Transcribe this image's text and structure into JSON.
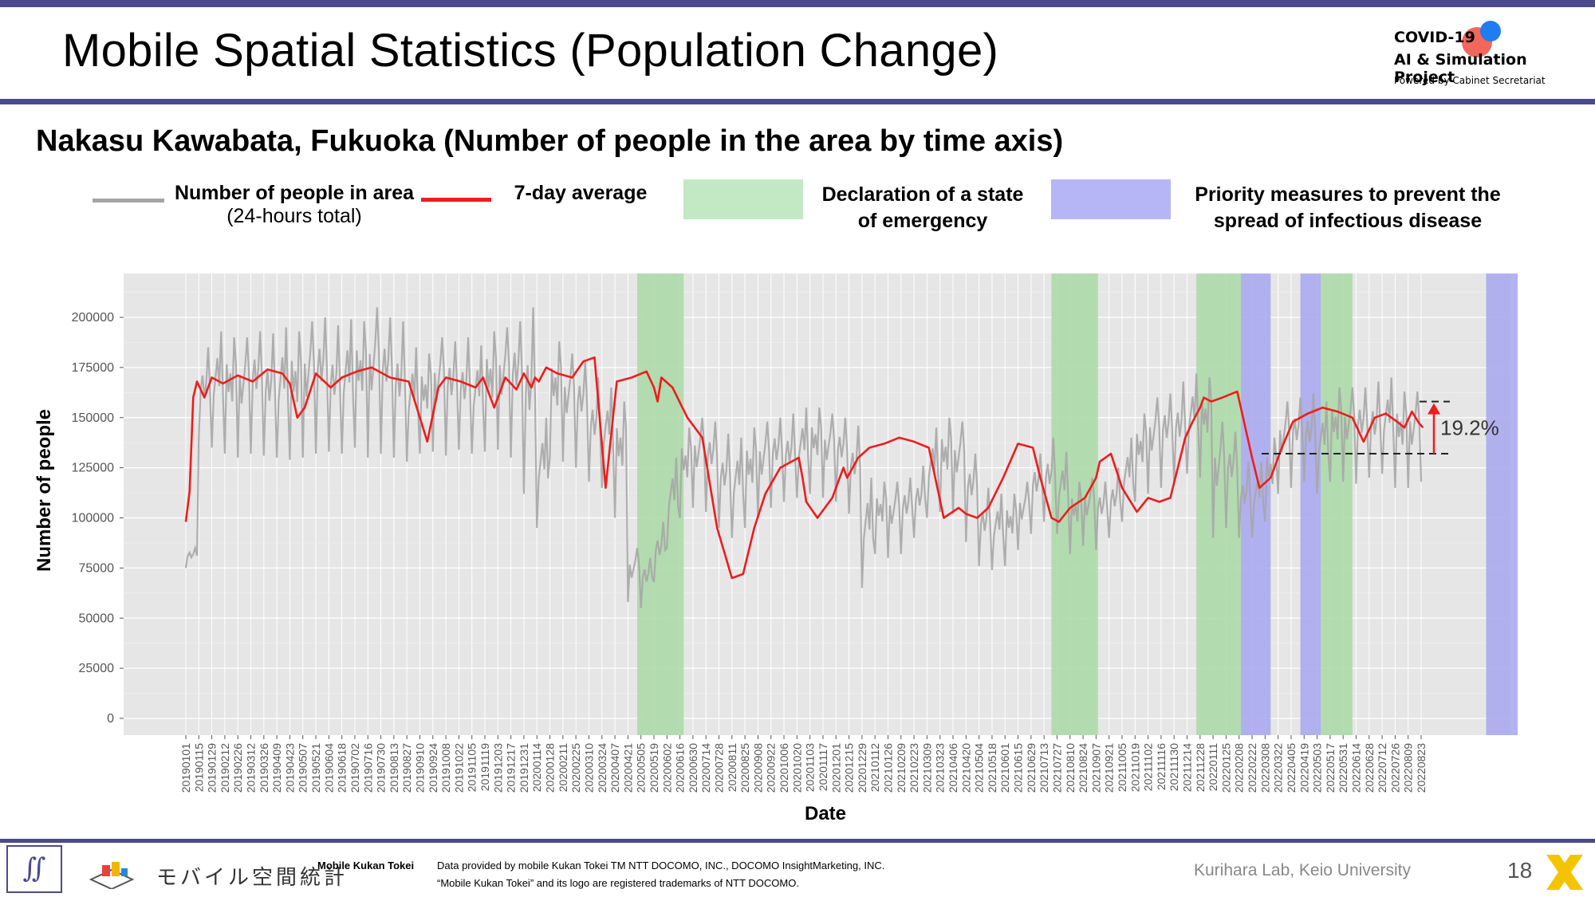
{
  "slide": {
    "title": "Mobile Spatial Statistics (Population Change)",
    "subtitle": "Nakasu Kawabata, Fukuoka (Number of people in the area by time axis)",
    "badge": {
      "line1": "COVID-19",
      "line2": "AI & Simulation Project",
      "line3": "Powered by Cabinet Secretariat"
    },
    "page_number": "18"
  },
  "legend": {
    "people_line1": "Number of people in area",
    "people_line2": "(24-hours total)",
    "avg": "7-day average",
    "emergency_line1": "Declaration of a state",
    "emergency_line2": "of emergency",
    "priority_line1": "Priority measures to prevent the",
    "priority_line2": "spread of infectious disease"
  },
  "footer": {
    "mk_logo_text": "モバイル空間統計",
    "mk_label": "Mobile Kukan Tokei",
    "credit1": "Data provided by mobile Kukan Tokei TM NTT DOCOMO, INC., DOCOMO InsightMarketing, INC.",
    "credit2": "“Mobile Kukan Tokei” and its logo are registered trademarks of NTT DOCOMO.",
    "lab": "Kurihara Lab, Keio University"
  },
  "colors": {
    "raw": "#a6a6a6",
    "avg": "#ee1c1c",
    "emergency": "#a8d8a4",
    "priority": "#a6a6ee",
    "panel": "#e6e6e6",
    "band": "#4b4a8c"
  },
  "chart_data": {
    "type": "line",
    "xlabel": "Date",
    "ylabel": "Number of people",
    "ylim": [
      0,
      220000
    ],
    "yticks": [
      0,
      25000,
      50000,
      75000,
      100000,
      125000,
      150000,
      175000,
      200000
    ],
    "ytick_labels": [
      "0",
      "25000",
      "50000",
      "75000",
      "100000",
      "125000",
      "150000",
      "175000",
      "200000"
    ],
    "xtick_labels": [
      "20190101",
      "20190115",
      "20190129",
      "20190212",
      "20190226",
      "20190312",
      "20190326",
      "20190409",
      "20190423",
      "20190507",
      "20190521",
      "20190604",
      "20190618",
      "20190702",
      "20190716",
      "20190730",
      "20190813",
      "20190827",
      "20190910",
      "20190924",
      "20191008",
      "20191022",
      "20191105",
      "20191119",
      "20191203",
      "20191217",
      "20191231",
      "20200114",
      "20200128",
      "20200211",
      "20200225",
      "20200310",
      "20200324",
      "20200407",
      "20200421",
      "20200505",
      "20200519",
      "20200602",
      "20200616",
      "20200630",
      "20200714",
      "20200728",
      "20200811",
      "20200825",
      "20200908",
      "20200922",
      "20201006",
      "20201020",
      "20201103",
      "20201117",
      "20201201",
      "20201215",
      "20201229",
      "20210112",
      "20210126",
      "20210209",
      "20210223",
      "20210309",
      "20210323",
      "20210406",
      "20210420",
      "20210504",
      "20210518",
      "20210601",
      "20210615",
      "20210629",
      "20210713",
      "20210727",
      "20210810",
      "20210824",
      "20210907",
      "20210921",
      "20211005",
      "20211019",
      "20211102",
      "20211116",
      "20211130",
      "20211214",
      "20211228",
      "20220111",
      "20220125",
      "20220208",
      "20220222",
      "20220308",
      "20220322",
      "20220405",
      "20220419",
      "20220503",
      "20220517",
      "20220531",
      "20220614",
      "20220628",
      "20220712",
      "20220726",
      "20220809",
      "20220823"
    ],
    "series": [
      {
        "name": "Number of people in area",
        "role": "raw_daily",
        "weekly_x": [
          0,
          7,
          14,
          21,
          28,
          35,
          42,
          49,
          56,
          63,
          70,
          77,
          84,
          91,
          98,
          105,
          112,
          119,
          126,
          133,
          140,
          147,
          154,
          161,
          168,
          175,
          182,
          189,
          196,
          203,
          210,
          217,
          224,
          231,
          238,
          245,
          252,
          259,
          266,
          273,
          280,
          287,
          294,
          301,
          308,
          315,
          322,
          329,
          336,
          343,
          350,
          357,
          364,
          371,
          378,
          385,
          392,
          399,
          406,
          413,
          420,
          427,
          434,
          441,
          448,
          455,
          462,
          469,
          476,
          483,
          490,
          497,
          504,
          511,
          518,
          525,
          532,
          539,
          546,
          553,
          560,
          567,
          574,
          581,
          588,
          595,
          602,
          609,
          616,
          623,
          630,
          637,
          644,
          651,
          658,
          665
        ],
        "weekly_high": [
          85000,
          185000,
          193000,
          190000,
          190000,
          193000,
          192000,
          195000,
          193000,
          198000,
          200000,
          196000,
          199000,
          198000,
          205000,
          200000,
          198000,
          185000,
          182000,
          190000,
          188000,
          190000,
          186000,
          193000,
          195000,
          198000,
          205000,
          150000,
          188000,
          182000,
          178000,
          170000,
          165000,
          158000,
          85000,
          80000,
          98000,
          130000,
          145000,
          150000,
          148000,
          142000,
          140000,
          145000,
          148000,
          150000,
          152000,
          155000,
          155000,
          152000,
          150000,
          146000,
          120000,
          118000,
          118000,
          120000,
          126000,
          145000,
          150000,
          148000,
          132000,
          115000,
          112000,
          112000,
          118000,
          132000,
          140000,
          133000,
          118000,
          120000,
          118000,
          125000,
          140000,
          152000,
          160000,
          162000,
          168000,
          172000,
          170000,
          148000,
          143000,
          128000,
          128000,
          140000,
          158000,
          160000,
          162000,
          158000,
          165000,
          165000,
          165000,
          168000,
          170000,
          163000,
          163000,
          164000
        ],
        "weekly_low": [
          75000,
          140000,
          135000,
          132000,
          130000,
          132000,
          131000,
          130000,
          129000,
          130000,
          132000,
          133000,
          132000,
          135000,
          130000,
          132000,
          130000,
          128000,
          132000,
          133000,
          131000,
          134000,
          132000,
          133000,
          134000,
          130000,
          112000,
          95000,
          130000,
          128000,
          125000,
          118000,
          115000,
          100000,
          58000,
          55000,
          68000,
          85000,
          100000,
          105000,
          103000,
          95000,
          90000,
          95000,
          100000,
          105000,
          108000,
          110000,
          112000,
          110000,
          108000,
          102000,
          65000,
          82000,
          80000,
          82000,
          90000,
          100000,
          103000,
          102000,
          88000,
          76000,
          74000,
          76000,
          84000,
          92000,
          98000,
          92000,
          82000,
          86000,
          84000,
          90000,
          98000,
          108000,
          112000,
          115000,
          118000,
          122000,
          120000,
          90000,
          95000,
          90000,
          90000,
          98000,
          112000,
          115000,
          118000,
          112000,
          118000,
          118000,
          117000,
          120000,
          122000,
          115000,
          115000,
          118000
        ]
      },
      {
        "name": "7-day average",
        "role": "rolling_average",
        "x": [
          0,
          2,
          4,
          6,
          10,
          14,
          20,
          28,
          36,
          44,
          52,
          56,
          60,
          64,
          70,
          78,
          84,
          92,
          100,
          110,
          120,
          130,
          136,
          140,
          148,
          156,
          160,
          166,
          172,
          178,
          182,
          186,
          188,
          190,
          194,
          200,
          208,
          214,
          220,
          226,
          232,
          240,
          248,
          252,
          254,
          256,
          262,
          270,
          278,
          286,
          294,
          300,
          306,
          312,
          320,
          330,
          332,
          334,
          340,
          348,
          354,
          356,
          362,
          368,
          376,
          384,
          392,
          400,
          408,
          416,
          420,
          426,
          432,
          440,
          448,
          456,
          460,
          466,
          470,
          476,
          484,
          490,
          492,
          498,
          504,
          512,
          518,
          524,
          530,
          534,
          538,
          542,
          546,
          548,
          552,
          558,
          566,
          574,
          578,
          584,
          590,
          596,
          604,
          612,
          620,
          628,
          634,
          640,
          646,
          652,
          656,
          660,
          664,
          666
        ],
        "y": [
          98000,
          113000,
          160000,
          168000,
          160000,
          170000,
          167000,
          171000,
          168000,
          174000,
          172000,
          167000,
          150000,
          155000,
          172000,
          165000,
          170000,
          173000,
          175000,
          170000,
          168000,
          138000,
          165000,
          170000,
          168000,
          165000,
          170000,
          155000,
          170000,
          164000,
          172000,
          165000,
          170000,
          168000,
          175000,
          172000,
          170000,
          178000,
          180000,
          115000,
          168000,
          170000,
          173000,
          165000,
          158000,
          170000,
          165000,
          150000,
          140000,
          95000,
          70000,
          72000,
          95000,
          112000,
          125000,
          130000,
          120000,
          108000,
          100000,
          110000,
          125000,
          120000,
          130000,
          135000,
          137000,
          140000,
          138000,
          135000,
          100000,
          105000,
          102000,
          100000,
          105000,
          120000,
          137000,
          135000,
          120000,
          100000,
          98000,
          105000,
          110000,
          120000,
          128000,
          132000,
          115000,
          103000,
          110000,
          108000,
          110000,
          125000,
          140000,
          148000,
          155000,
          160000,
          158000,
          160000,
          163000,
          130000,
          115000,
          120000,
          135000,
          148000,
          152000,
          155000,
          153000,
          150000,
          138000,
          150000,
          152000,
          148000,
          145000,
          153000,
          147000,
          145000
        ]
      }
    ],
    "shaded_periods": [
      {
        "label": "Declaration of a state of emergency",
        "start": 243,
        "end": 268
      },
      {
        "label": "Declaration of a state of emergency",
        "start": 466,
        "end": 491
      },
      {
        "label": "Declaration of a state of emergency",
        "start": 544,
        "end": 568
      },
      {
        "label": "Priority measures to prevent the spread of infectious disease",
        "start": 568,
        "end": 584
      },
      {
        "label": "Priority measures to prevent the spread of infectious disease",
        "start": 600,
        "end": 611
      },
      {
        "label": "Declaration of a state of emergency",
        "start": 611,
        "end": 628
      },
      {
        "label": "Priority measures to prevent the spread of infectious disease",
        "start": 700,
        "end": 717
      }
    ],
    "annotation": {
      "text": "19.2%",
      "from": 132000,
      "to": 158000
    }
  }
}
